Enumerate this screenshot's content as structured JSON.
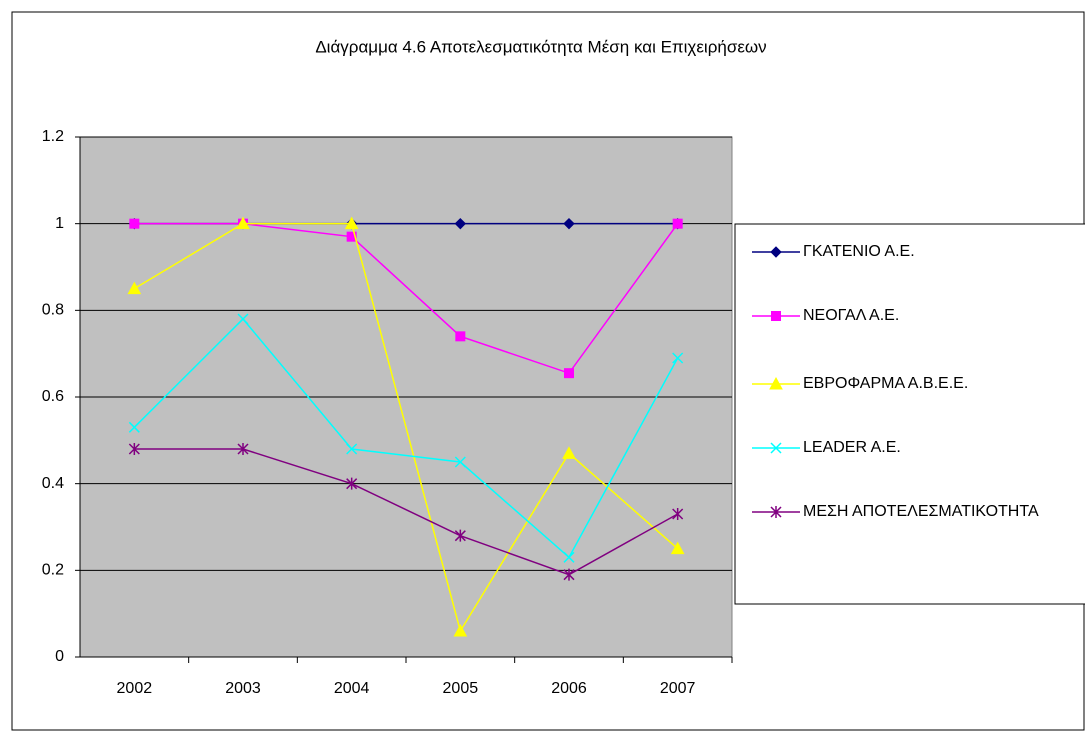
{
  "chart_data": {
    "type": "line",
    "title": "Διάγραμμα 4.6 Αποτελεσματικότητα Μέση και Επιχειρήσεων",
    "categories": [
      "2002",
      "2003",
      "2004",
      "2005",
      "2006",
      "2007"
    ],
    "series": [
      {
        "name": "ΓΚΑΤΕΝΙΟ Α.Ε.",
        "color": "#000080",
        "marker": "diamond",
        "values": [
          1,
          1,
          1,
          1,
          1,
          1
        ]
      },
      {
        "name": "ΝΕΟΓΑΛ Α.Ε.",
        "color": "#ff00ff",
        "marker": "square",
        "values": [
          1,
          1,
          0.97,
          0.74,
          0.655,
          1
        ]
      },
      {
        "name": "ΕΒΡΟΦΑΡΜΑ Α.Β.Ε.Ε.",
        "color": "#ffff00",
        "marker": "triangle",
        "values": [
          0.85,
          1,
          1,
          0.06,
          0.47,
          0.25
        ]
      },
      {
        "name": "LEADER A.E.",
        "color": "#00ffff",
        "marker": "x",
        "values": [
          0.53,
          0.78,
          0.48,
          0.45,
          0.23,
          0.69
        ]
      },
      {
        "name": "ΜΕΣΗ ΑΠΟΤΕΛΕΣΜΑΤΙΚΟΤΗΤΑ",
        "color": "#800080",
        "marker": "star",
        "values": [
          0.48,
          0.48,
          0.4,
          0.28,
          0.19,
          0.33
        ]
      }
    ],
    "ylim": [
      0,
      1.2
    ],
    "yticks": [
      0,
      0.2,
      0.4,
      0.6,
      0.8,
      1,
      1.2
    ],
    "grid": true,
    "legend": "right"
  }
}
